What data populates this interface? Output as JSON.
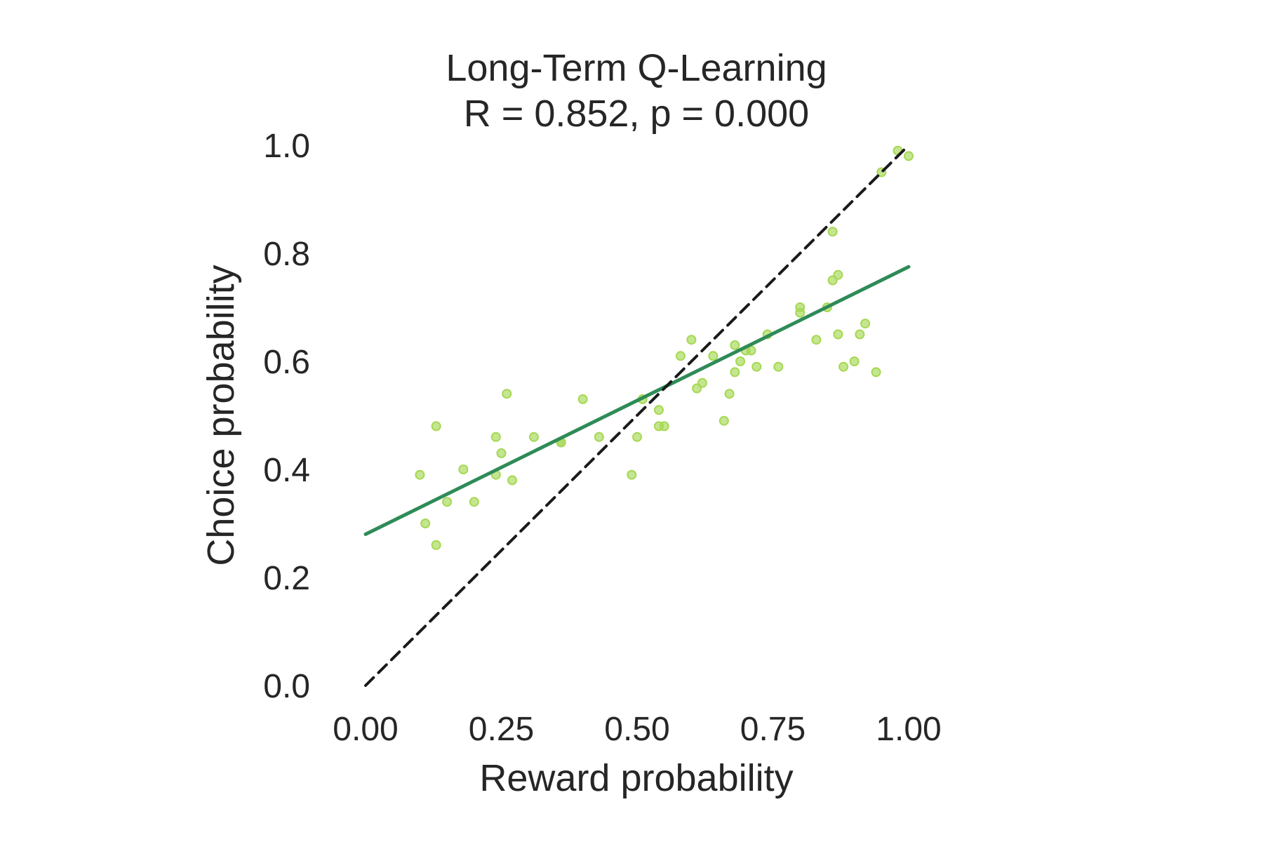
{
  "chart_data": {
    "type": "scatter",
    "title": "Long-Term Q-Learning",
    "subtitle": "R = 0.852, p = 0.000",
    "xlabel": "Reward probability",
    "ylabel": "Choice probability",
    "xlim": [
      0.0,
      1.0
    ],
    "ylim": [
      0.0,
      1.0
    ],
    "x_ticks": [
      "0.00",
      "0.25",
      "0.50",
      "0.75",
      "1.00"
    ],
    "y_ticks": [
      "0.0",
      "0.2",
      "0.4",
      "0.6",
      "0.8",
      "1.0"
    ],
    "grid": false,
    "colors": {
      "points": "#a6d854",
      "fit_line": "#2e8b57",
      "identity_line": "#1a1a1a",
      "text": "#262626"
    },
    "series": [
      {
        "type": "scatter",
        "points": [
          [
            0.1,
            0.39
          ],
          [
            0.11,
            0.3
          ],
          [
            0.13,
            0.48
          ],
          [
            0.13,
            0.26
          ],
          [
            0.15,
            0.34
          ],
          [
            0.18,
            0.4
          ],
          [
            0.2,
            0.34
          ],
          [
            0.24,
            0.39
          ],
          [
            0.24,
            0.46
          ],
          [
            0.25,
            0.43
          ],
          [
            0.26,
            0.54
          ],
          [
            0.27,
            0.38
          ],
          [
            0.31,
            0.46
          ],
          [
            0.36,
            0.45
          ],
          [
            0.36,
            0.45
          ],
          [
            0.4,
            0.53
          ],
          [
            0.43,
            0.46
          ],
          [
            0.49,
            0.39
          ],
          [
            0.5,
            0.46
          ],
          [
            0.51,
            0.53
          ],
          [
            0.54,
            0.51
          ],
          [
            0.54,
            0.48
          ],
          [
            0.55,
            0.48
          ],
          [
            0.58,
            0.61
          ],
          [
            0.6,
            0.64
          ],
          [
            0.61,
            0.55
          ],
          [
            0.62,
            0.56
          ],
          [
            0.64,
            0.61
          ],
          [
            0.66,
            0.49
          ],
          [
            0.67,
            0.54
          ],
          [
            0.68,
            0.58
          ],
          [
            0.68,
            0.63
          ],
          [
            0.69,
            0.6
          ],
          [
            0.7,
            0.62
          ],
          [
            0.71,
            0.62
          ],
          [
            0.72,
            0.59
          ],
          [
            0.74,
            0.65
          ],
          [
            0.76,
            0.59
          ],
          [
            0.8,
            0.7
          ],
          [
            0.8,
            0.69
          ],
          [
            0.83,
            0.64
          ],
          [
            0.85,
            0.7
          ],
          [
            0.86,
            0.84
          ],
          [
            0.86,
            0.75
          ],
          [
            0.87,
            0.76
          ],
          [
            0.87,
            0.65
          ],
          [
            0.88,
            0.59
          ],
          [
            0.9,
            0.6
          ],
          [
            0.91,
            0.65
          ],
          [
            0.92,
            0.67
          ],
          [
            0.94,
            0.58
          ],
          [
            0.95,
            0.95
          ],
          [
            0.98,
            0.99
          ],
          [
            1.0,
            0.98
          ]
        ]
      },
      {
        "type": "line",
        "style": "solid",
        "x": [
          0.0,
          1.0
        ],
        "y": [
          0.28,
          0.775
        ]
      },
      {
        "type": "line",
        "style": "dashed",
        "x": [
          0.0,
          1.0
        ],
        "y": [
          0.0,
          1.0
        ]
      }
    ]
  }
}
